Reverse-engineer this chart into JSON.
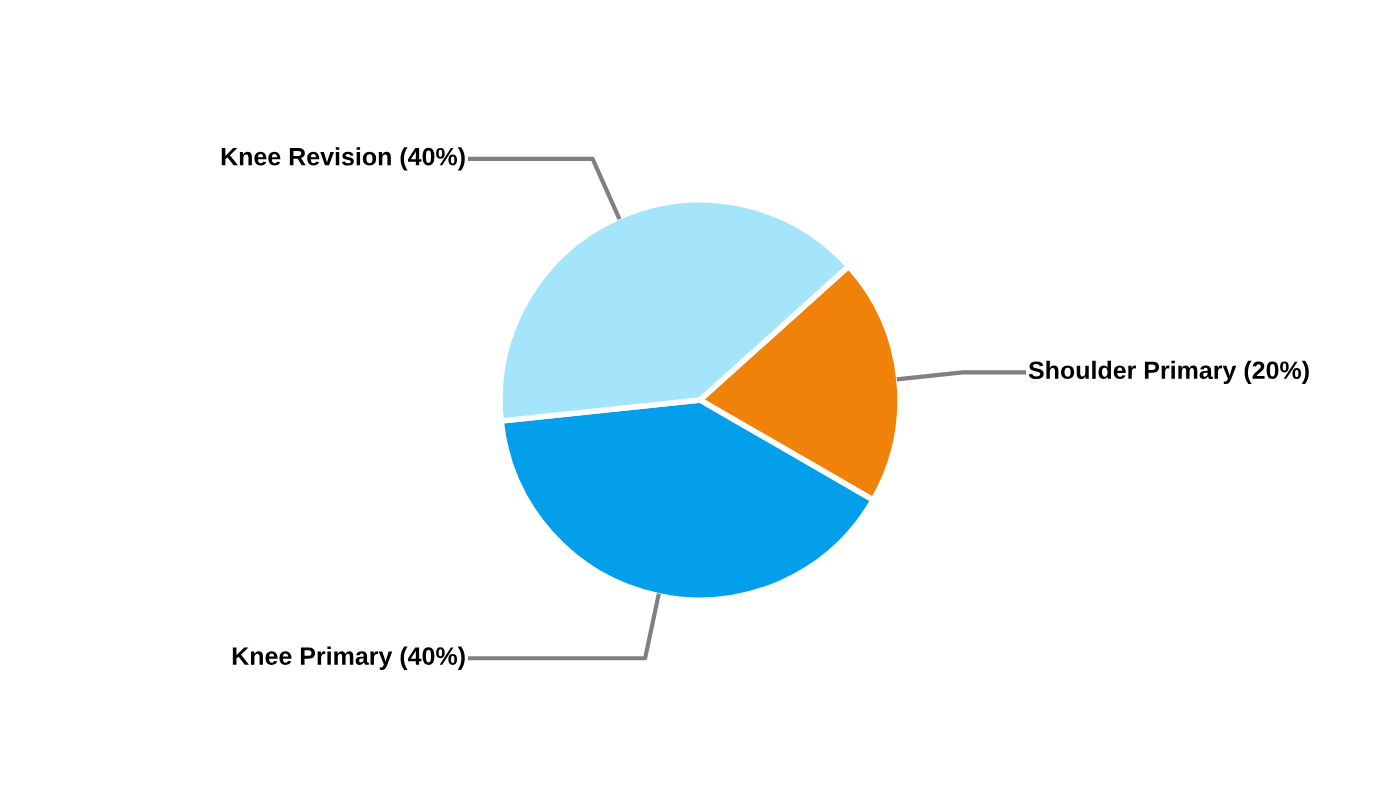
{
  "chart_data": {
    "type": "pie",
    "categories": [
      "Shoulder Primary",
      "Knee Primary",
      "Knee Revision"
    ],
    "values": [
      20,
      40,
      40
    ],
    "value_labels": [
      "(20%)",
      "(40%)",
      "(40%)"
    ],
    "colors": [
      "#f0820a",
      "#049fea",
      "#a5e5fb"
    ],
    "legend": false
  }
}
